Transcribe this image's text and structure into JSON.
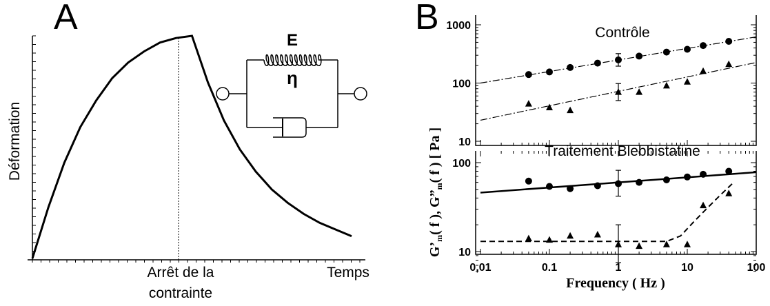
{
  "panel_a": {
    "letter": "A",
    "ylabel": "Déformation",
    "xlabel": "Temps",
    "stop_label_line1": "Arrêt de la",
    "stop_label_line2": "contrainte",
    "spring_label": "E",
    "dashpot_label": "η"
  },
  "panel_b": {
    "letter": "B",
    "label_control": "Contrôle",
    "label_blebb": "Traitement Blebbistatine",
    "xlabel": "Frequency ( Hz )",
    "xticks": [
      "0,01",
      "0.1",
      "1",
      "10",
      "100"
    ],
    "top_yticks": [
      "1000",
      "100",
      "10"
    ],
    "bottom_yticks": [
      "100",
      "10"
    ]
  },
  "chart_data": [
    {
      "type": "line",
      "title": "",
      "xlabel": "Temps",
      "ylabel": "Déformation",
      "annotation": "Arrêt de la contrainte",
      "series": [
        {
          "x": [
            0,
            0.05,
            0.1,
            0.15,
            0.2,
            0.25,
            0.3,
            0.35,
            0.4,
            0.45,
            0.5,
            0.55,
            0.6,
            0.65,
            0.7,
            0.75,
            0.8,
            0.85,
            0.9,
            0.95,
            1.0
          ],
          "values": [
            0,
            0.23,
            0.43,
            0.59,
            0.71,
            0.81,
            0.88,
            0.93,
            0.97,
            0.99,
            1.0,
            0.79,
            0.62,
            0.49,
            0.39,
            0.31,
            0.25,
            0.2,
            0.16,
            0.13,
            0.1
          ]
        }
      ]
    },
    {
      "type": "scatter",
      "title": "Contrôle",
      "xlabel": "Frequency ( Hz )",
      "ylabel": "G'm(f), G\"m(f) [Pa]",
      "xscale": "log",
      "yscale": "log",
      "xlim": [
        0.01,
        100
      ],
      "ylim": [
        10,
        1000
      ],
      "series": [
        {
          "marker": "circle",
          "x": [
            0.05,
            0.1,
            0.2,
            0.5,
            1,
            2,
            5,
            10,
            17,
            40
          ],
          "values": [
            140,
            155,
            185,
            220,
            250,
            290,
            340,
            380,
            440,
            520
          ],
          "fit": {
            "type": "line",
            "style": "dash-dot",
            "x": [
              0.01,
              100
            ],
            "values": [
              100,
              620
            ]
          }
        },
        {
          "marker": "triangle",
          "x": [
            0.05,
            0.1,
            0.2,
            1,
            2,
            5,
            10,
            17,
            40
          ],
          "values": [
            44,
            38,
            34,
            70,
            70,
            90,
            105,
            160,
            210
          ],
          "fit": {
            "type": "line",
            "style": "dash-dot",
            "x": [
              0.01,
              100
            ],
            "values": [
              23,
              225
            ]
          }
        }
      ],
      "error_bars": [
        {
          "x": 1,
          "y": 250,
          "low": 195,
          "high": 320
        },
        {
          "x": 1,
          "y": 70,
          "low": 50,
          "high": 98
        }
      ]
    },
    {
      "type": "scatter",
      "title": "Traitement Blebbistatine",
      "xlabel": "Frequency ( Hz )",
      "ylabel": "G'm(f), G\"m(f) [Pa]",
      "xscale": "log",
      "yscale": "log",
      "xlim": [
        0.01,
        100
      ],
      "ylim": [
        6,
        130
      ],
      "series": [
        {
          "marker": "circle",
          "x": [
            0.05,
            0.1,
            0.2,
            0.5,
            1,
            2,
            5,
            10,
            17,
            40
          ],
          "values": [
            62,
            54,
            51,
            55,
            58,
            60,
            64,
            69,
            74,
            80
          ],
          "fit": {
            "type": "line",
            "style": "solid",
            "x": [
              0.01,
              100
            ],
            "values": [
              46,
              78
            ]
          }
        },
        {
          "marker": "triangle",
          "x": [
            0.05,
            0.1,
            0.2,
            0.5,
            1,
            2,
            5,
            10,
            17,
            40
          ],
          "values": [
            14,
            13.5,
            15,
            15.5,
            12,
            11.5,
            12,
            12,
            33,
            45
          ],
          "fit": {
            "type": "line",
            "style": "dashed",
            "x": [
              0.01,
              5,
              8,
              12,
              18,
              30,
              45
            ],
            "values": [
              13,
              13,
              15,
              21,
              29,
              43,
              58
            ]
          }
        }
      ],
      "error_bars": [
        {
          "x": 1,
          "y": 58,
          "low": 42,
          "high": 82
        },
        {
          "x": 1,
          "y": 12,
          "low": 7.5,
          "high": 20
        }
      ]
    }
  ]
}
